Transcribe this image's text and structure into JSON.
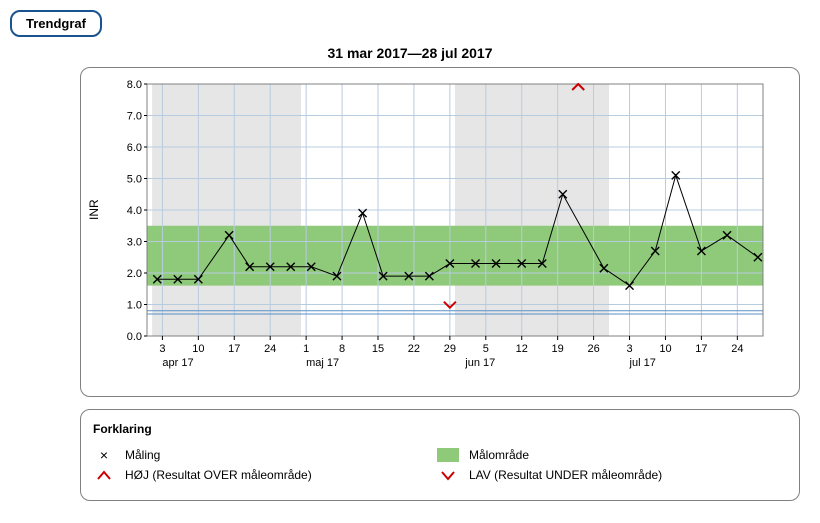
{
  "tab": {
    "label": "Trendgraf"
  },
  "chart": {
    "title": "31 mar 2017—28 jul 2017",
    "type": "line-scatter",
    "ylabel": "INR",
    "ylim": [
      0.0,
      8.0
    ],
    "ytick_step": 1.0,
    "yticks": [
      "0.0",
      "1.0",
      "2.0",
      "3.0",
      "4.0",
      "5.0",
      "6.0",
      "7.0",
      "8.0"
    ],
    "x_start_day": 0,
    "x_end_day": 120,
    "x_major_ticks": [
      {
        "day": 3,
        "label": "3"
      },
      {
        "day": 10,
        "label": "10"
      },
      {
        "day": 17,
        "label": "17"
      },
      {
        "day": 24,
        "label": "24"
      },
      {
        "day": 31,
        "label": "1"
      },
      {
        "day": 38,
        "label": "8"
      },
      {
        "day": 45,
        "label": "15"
      },
      {
        "day": 52,
        "label": "22"
      },
      {
        "day": 59,
        "label": "29"
      },
      {
        "day": 66,
        "label": "5"
      },
      {
        "day": 73,
        "label": "12"
      },
      {
        "day": 80,
        "label": "19"
      },
      {
        "day": 87,
        "label": "26"
      },
      {
        "day": 94,
        "label": "3"
      },
      {
        "day": 101,
        "label": "10"
      },
      {
        "day": 108,
        "label": "17"
      },
      {
        "day": 115,
        "label": "24"
      }
    ],
    "x_month_labels": [
      {
        "day": 3,
        "label": "apr 17"
      },
      {
        "day": 31,
        "label": "maj 17"
      },
      {
        "day": 62,
        "label": "jun 17"
      },
      {
        "day": 94,
        "label": "jul 17"
      }
    ],
    "target_band": {
      "low": 1.6,
      "high": 3.5,
      "color": "#8fc97a"
    },
    "gray_bands": [
      {
        "start": 1,
        "end": 30
      },
      {
        "start": 60,
        "end": 90
      }
    ],
    "grid_color": "#b8cce0",
    "plot_border_color": "#808080",
    "line_color": "#000000",
    "marker_color": "#000000",
    "marker_size": 4,
    "line_width": 1,
    "background_color": "#ffffff",
    "gray_band_color": "#e6e6e6",
    "high_marker_color": "#cc0000",
    "low_marker_color": "#cc0000",
    "baseline_blue": "#5b8fc7",
    "points": [
      {
        "day": 2,
        "val": 1.8
      },
      {
        "day": 6,
        "val": 1.8
      },
      {
        "day": 10,
        "val": 1.8
      },
      {
        "day": 16,
        "val": 3.2
      },
      {
        "day": 20,
        "val": 2.2
      },
      {
        "day": 24,
        "val": 2.2
      },
      {
        "day": 28,
        "val": 2.2
      },
      {
        "day": 32,
        "val": 2.2
      },
      {
        "day": 37,
        "val": 1.9
      },
      {
        "day": 42,
        "val": 3.9
      },
      {
        "day": 46,
        "val": 1.9
      },
      {
        "day": 51,
        "val": 1.9
      },
      {
        "day": 55,
        "val": 1.9
      },
      {
        "day": 59,
        "val": 2.3
      },
      {
        "day": 64,
        "val": 2.3
      },
      {
        "day": 68,
        "val": 2.3
      },
      {
        "day": 73,
        "val": 2.3
      },
      {
        "day": 77,
        "val": 2.3
      },
      {
        "day": 81,
        "val": 4.5
      },
      {
        "day": 89,
        "val": 2.15
      },
      {
        "day": 94,
        "val": 1.6
      },
      {
        "day": 99,
        "val": 2.7
      },
      {
        "day": 103,
        "val": 5.1
      },
      {
        "day": 108,
        "val": 2.7
      },
      {
        "day": 113,
        "val": 3.2
      },
      {
        "day": 119,
        "val": 2.5
      }
    ],
    "high_markers": [
      {
        "day": 84,
        "val": 8.0
      }
    ],
    "low_markers": [
      {
        "day": 59,
        "val": 0.9
      }
    ]
  },
  "legend": {
    "title": "Forklaring",
    "items": {
      "measurement": "Måling",
      "target": "Målområde",
      "high": "HØJ (Resultat OVER måleområde)",
      "low": "LAV (Resultat UNDER måleområde)"
    }
  }
}
